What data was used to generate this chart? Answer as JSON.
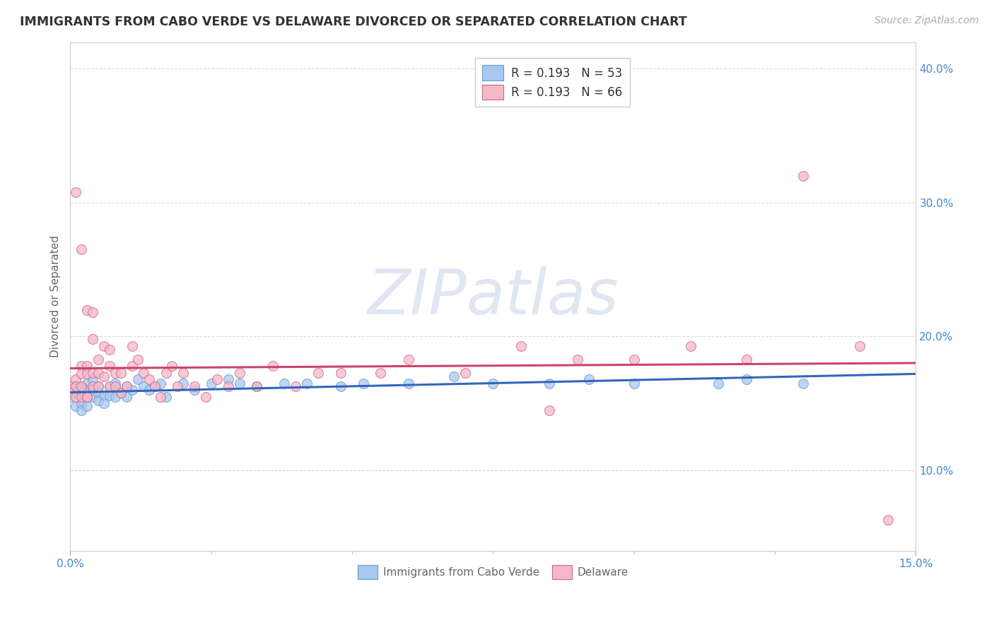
{
  "title": "IMMIGRANTS FROM CABO VERDE VS DELAWARE DIVORCED OR SEPARATED CORRELATION CHART",
  "source_text": "Source: ZipAtlas.com",
  "ylabel": "Divorced or Separated",
  "x_min": 0.0,
  "x_max": 0.15,
  "y_min": 0.04,
  "y_max": 0.42,
  "y_ticks": [
    0.1,
    0.2,
    0.3,
    0.4
  ],
  "y_tick_labels": [
    "10.0%",
    "20.0%",
    "30.0%",
    "40.0%"
  ],
  "x_tick_labels_left": "0.0%",
  "x_tick_labels_right": "15.0%",
  "watermark_text": "ZIPatlas",
  "cabo_color_face": "#a8c8f0",
  "cabo_color_edge": "#6699cc",
  "cabo_line_color": "#3366bb",
  "delaware_color_face": "#f5b8c8",
  "delaware_color_edge": "#cc6688",
  "delaware_line_color": "#cc4466",
  "legend_R1": "R = 0.193",
  "legend_N1": "N = 53",
  "legend_R2": "R = 0.193",
  "legend_N2": "N = 66",
  "cabo_x": [
    0.0,
    0.001,
    0.001,
    0.001,
    0.002,
    0.002,
    0.002,
    0.002,
    0.003,
    0.003,
    0.003,
    0.003,
    0.004,
    0.004,
    0.004,
    0.005,
    0.005,
    0.005,
    0.006,
    0.006,
    0.007,
    0.007,
    0.008,
    0.008,
    0.009,
    0.01,
    0.01,
    0.011,
    0.012,
    0.013,
    0.014,
    0.015,
    0.016,
    0.017,
    0.02,
    0.022,
    0.025,
    0.028,
    0.03,
    0.033,
    0.038,
    0.042,
    0.048,
    0.052,
    0.06,
    0.068,
    0.075,
    0.085,
    0.092,
    0.1,
    0.115,
    0.12,
    0.13
  ],
  "cabo_y": [
    0.155,
    0.163,
    0.158,
    0.148,
    0.162,
    0.156,
    0.15,
    0.145,
    0.165,
    0.16,
    0.155,
    0.148,
    0.168,
    0.16,
    0.155,
    0.163,
    0.158,
    0.152,
    0.156,
    0.15,
    0.162,
    0.156,
    0.165,
    0.155,
    0.158,
    0.163,
    0.155,
    0.16,
    0.168,
    0.163,
    0.16,
    0.163,
    0.165,
    0.155,
    0.165,
    0.16,
    0.165,
    0.168,
    0.165,
    0.163,
    0.165,
    0.165,
    0.163,
    0.165,
    0.165,
    0.17,
    0.165,
    0.165,
    0.168,
    0.165,
    0.165,
    0.168,
    0.165
  ],
  "delaware_x": [
    0.0,
    0.0,
    0.001,
    0.001,
    0.001,
    0.002,
    0.002,
    0.002,
    0.002,
    0.003,
    0.003,
    0.003,
    0.003,
    0.004,
    0.004,
    0.004,
    0.004,
    0.005,
    0.005,
    0.005,
    0.006,
    0.006,
    0.007,
    0.007,
    0.007,
    0.008,
    0.008,
    0.009,
    0.009,
    0.01,
    0.011,
    0.011,
    0.012,
    0.013,
    0.014,
    0.015,
    0.016,
    0.017,
    0.018,
    0.019,
    0.02,
    0.022,
    0.024,
    0.026,
    0.028,
    0.03,
    0.033,
    0.036,
    0.04,
    0.044,
    0.048,
    0.055,
    0.06,
    0.07,
    0.08,
    0.09,
    0.1,
    0.11,
    0.12,
    0.13,
    0.14,
    0.145,
    0.001,
    0.002,
    0.003,
    0.085
  ],
  "delaware_y": [
    0.163,
    0.158,
    0.168,
    0.163,
    0.155,
    0.178,
    0.172,
    0.163,
    0.155,
    0.22,
    0.178,
    0.172,
    0.155,
    0.218,
    0.198,
    0.173,
    0.163,
    0.183,
    0.173,
    0.163,
    0.193,
    0.17,
    0.19,
    0.178,
    0.163,
    0.173,
    0.163,
    0.173,
    0.158,
    0.163,
    0.193,
    0.178,
    0.183,
    0.173,
    0.168,
    0.163,
    0.155,
    0.173,
    0.178,
    0.163,
    0.173,
    0.163,
    0.155,
    0.168,
    0.163,
    0.173,
    0.163,
    0.178,
    0.163,
    0.173,
    0.173,
    0.173,
    0.183,
    0.173,
    0.193,
    0.183,
    0.183,
    0.193,
    0.183,
    0.32,
    0.193,
    0.063,
    0.308,
    0.265,
    0.155,
    0.145
  ],
  "background_color": "#ffffff",
  "grid_color": "#d0d0d0",
  "title_color": "#333333",
  "ylabel_color": "#666666",
  "tick_color": "#4488cc",
  "marker_size": 100
}
